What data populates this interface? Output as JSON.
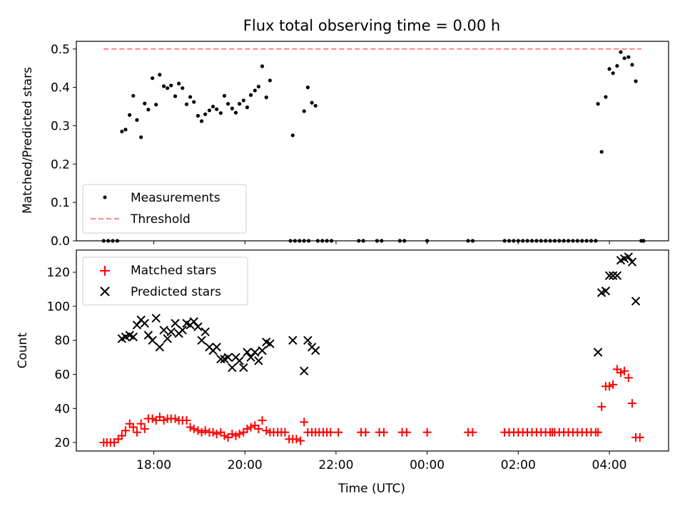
{
  "title": "Flux total observing time = 0.00 h",
  "chart_data": [
    {
      "type": "scatter",
      "ylabel": "Matched/Predicted stars",
      "xlim_hours": [
        16.3,
        29.3
      ],
      "ylim": [
        0,
        0.52
      ],
      "yticks": [
        0.0,
        0.1,
        0.2,
        0.3,
        0.4,
        0.5
      ],
      "ytick_labels": [
        "0.0",
        "0.1",
        "0.2",
        "0.3",
        "0.4",
        "0.5"
      ],
      "legend_position": "lower-left",
      "legend": [
        {
          "label": "Measurements",
          "marker": "dot",
          "color": "#000000"
        },
        {
          "label": "Threshold",
          "marker": "dashed-line",
          "color": "#ff7f7f"
        }
      ],
      "threshold": {
        "name": "Threshold",
        "y": 0.5,
        "x_from": 16.9,
        "x_to": 28.7,
        "color": "#ff7f7f"
      },
      "series": [
        {
          "name": "Measurements",
          "color": "#000000",
          "x": [
            17.3,
            17.38,
            17.47,
            17.55,
            17.63,
            17.72,
            17.8,
            17.88,
            17.97,
            18.05,
            18.13,
            18.22,
            18.3,
            18.38,
            18.47,
            18.55,
            18.63,
            18.72,
            18.8,
            18.88,
            18.97,
            19.05,
            19.13,
            19.22,
            19.3,
            19.38,
            19.47,
            19.55,
            19.63,
            19.72,
            19.8,
            19.88,
            19.97,
            20.05,
            20.13,
            20.22,
            20.3,
            20.38,
            20.47,
            20.55,
            21.05,
            21.3,
            21.38,
            21.47,
            21.55,
            27.75,
            27.83,
            27.92,
            28.0,
            28.08,
            28.17,
            28.25,
            28.33,
            28.42,
            28.5,
            28.58
          ],
          "y": [
            0.285,
            0.29,
            0.328,
            0.378,
            0.315,
            0.27,
            0.358,
            0.342,
            0.424,
            0.355,
            0.433,
            0.403,
            0.398,
            0.405,
            0.377,
            0.41,
            0.398,
            0.356,
            0.375,
            0.362,
            0.326,
            0.312,
            0.33,
            0.34,
            0.35,
            0.343,
            0.333,
            0.378,
            0.357,
            0.345,
            0.334,
            0.357,
            0.366,
            0.348,
            0.38,
            0.392,
            0.402,
            0.455,
            0.374,
            0.418,
            0.275,
            0.338,
            0.4,
            0.36,
            0.352,
            0.357,
            0.232,
            0.375,
            0.448,
            0.437,
            0.456,
            0.492,
            0.476,
            0.479,
            0.459,
            0.416
          ]
        },
        {
          "name": "Measurements (zero)",
          "color": "#000000",
          "x": [
            16.9,
            17.0,
            17.1,
            17.2,
            21.0,
            21.1,
            21.2,
            21.3,
            21.4,
            21.6,
            21.7,
            21.8,
            21.9,
            22.5,
            22.6,
            22.9,
            23.0,
            23.4,
            23.5,
            24.0,
            24.9,
            25.0,
            25.7,
            25.8,
            25.9,
            26.0,
            26.1,
            26.2,
            26.3,
            26.4,
            26.5,
            26.6,
            26.7,
            26.8,
            26.9,
            27.0,
            27.1,
            27.2,
            27.3,
            27.4,
            27.5,
            27.6,
            27.7,
            28.7,
            28.75
          ],
          "y": [
            0,
            0,
            0,
            0,
            0,
            0,
            0,
            0,
            0,
            0,
            0,
            0,
            0,
            0,
            0,
            0,
            0,
            0,
            0,
            0,
            0,
            0,
            0,
            0,
            0,
            0,
            0,
            0,
            0,
            0,
            0,
            0,
            0,
            0,
            0,
            0,
            0,
            0,
            0,
            0,
            0,
            0,
            0,
            0,
            0
          ]
        }
      ]
    },
    {
      "type": "scatter",
      "xlabel": "Time (UTC)",
      "ylabel": "Count",
      "xlim_hours": [
        16.3,
        29.3
      ],
      "ylim": [
        15,
        133
      ],
      "xticks_hours": [
        18,
        20,
        22,
        24,
        26,
        28
      ],
      "xtick_labels": [
        "18:00",
        "20:00",
        "22:00",
        "00:00",
        "02:00",
        "04:00"
      ],
      "yticks": [
        20,
        40,
        60,
        80,
        100,
        120
      ],
      "ytick_labels": [
        "20",
        "40",
        "60",
        "80",
        "100",
        "120"
      ],
      "legend_position": "upper-left",
      "legend": [
        {
          "label": "Matched stars",
          "marker": "plus",
          "color": "#ff0000"
        },
        {
          "label": "Predicted stars",
          "marker": "x",
          "color": "#000000"
        }
      ],
      "series": [
        {
          "name": "Matched stars",
          "marker": "plus",
          "color": "#ff0000",
          "x": [
            16.9,
            16.97,
            17.05,
            17.13,
            17.22,
            17.3,
            17.38,
            17.47,
            17.55,
            17.63,
            17.72,
            17.8,
            17.88,
            17.97,
            18.05,
            18.13,
            18.22,
            18.3,
            18.38,
            18.47,
            18.55,
            18.63,
            18.72,
            18.8,
            18.88,
            18.97,
            19.05,
            19.13,
            19.22,
            19.3,
            19.38,
            19.47,
            19.55,
            19.63,
            19.72,
            19.8,
            19.88,
            19.97,
            20.05,
            20.13,
            20.22,
            20.3,
            20.38,
            20.47,
            20.55,
            20.63,
            20.72,
            20.8,
            20.88,
            20.97,
            21.05,
            21.13,
            21.22,
            21.3,
            21.38,
            21.47,
            21.55,
            21.63,
            21.72,
            21.8,
            21.88,
            22.05,
            22.55,
            22.65,
            22.95,
            23.05,
            23.45,
            23.55,
            24.0,
            24.9,
            25.0,
            25.7,
            25.8,
            25.9,
            26.0,
            26.1,
            26.2,
            26.3,
            26.4,
            26.5,
            26.6,
            26.7,
            26.75,
            26.8,
            26.9,
            27.0,
            27.1,
            27.2,
            27.3,
            27.4,
            27.5,
            27.6,
            27.7,
            27.75,
            27.83,
            27.92,
            28.0,
            28.08,
            28.17,
            28.25,
            28.33,
            28.42,
            28.5,
            28.58,
            28.67
          ],
          "y": [
            20,
            20,
            20,
            20,
            22,
            24,
            27,
            31,
            29,
            26,
            31,
            28,
            34,
            34,
            33,
            35,
            33,
            34,
            34,
            34,
            33,
            33,
            33,
            29,
            28,
            27,
            26,
            27,
            26,
            26,
            25,
            26,
            24,
            23,
            25,
            24,
            25,
            26,
            28,
            29,
            30,
            28,
            33,
            27,
            26,
            26,
            26,
            26,
            26,
            22,
            22,
            22,
            21,
            32,
            26,
            26,
            26,
            26,
            26,
            26,
            26,
            26,
            26,
            26,
            26,
            26,
            26,
            26,
            26,
            26,
            26,
            26,
            26,
            26,
            26,
            26,
            26,
            26,
            26,
            26,
            26,
            26,
            26,
            26,
            26,
            26,
            26,
            26,
            26,
            26,
            26,
            26,
            26,
            26,
            41,
            53,
            53,
            54,
            63,
            61,
            62,
            58,
            43,
            23,
            23
          ]
        },
        {
          "name": "Predicted stars",
          "marker": "x",
          "color": "#000000",
          "x": [
            17.3,
            17.38,
            17.47,
            17.55,
            17.63,
            17.72,
            17.8,
            17.88,
            17.97,
            18.05,
            18.13,
            18.22,
            18.3,
            18.38,
            18.47,
            18.55,
            18.63,
            18.72,
            18.8,
            18.88,
            18.97,
            19.05,
            19.13,
            19.22,
            19.3,
            19.38,
            19.47,
            19.55,
            19.63,
            19.72,
            19.8,
            19.88,
            19.97,
            20.05,
            20.13,
            20.22,
            20.3,
            20.38,
            20.47,
            20.55,
            21.05,
            21.3,
            21.38,
            21.47,
            21.55,
            27.75,
            27.83,
            27.92,
            28.0,
            28.08,
            28.17,
            28.25,
            28.33,
            28.42,
            28.5,
            28.58
          ],
          "y": [
            81,
            82,
            83,
            82,
            89,
            92,
            90,
            83,
            80,
            93,
            76,
            86,
            81,
            85,
            90,
            84,
            86,
            90,
            89,
            91,
            88,
            80,
            85,
            76,
            74,
            76,
            69,
            69,
            70,
            64,
            70,
            68,
            64,
            73,
            70,
            73,
            68,
            74,
            79,
            78,
            80,
            62,
            80,
            76,
            74,
            73,
            108,
            109,
            118,
            118,
            118,
            127,
            128,
            129,
            126,
            103
          ]
        }
      ]
    }
  ]
}
